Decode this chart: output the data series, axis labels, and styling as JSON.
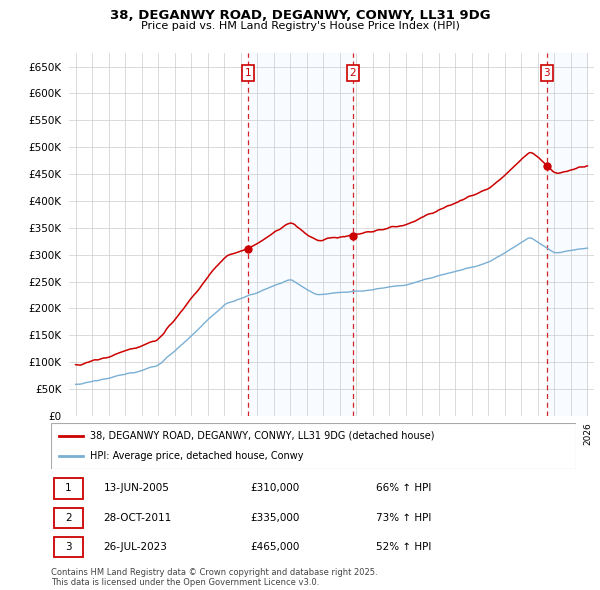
{
  "title1": "38, DEGANWY ROAD, DEGANWY, CONWY, LL31 9DG",
  "title2": "Price paid vs. HM Land Registry's House Price Index (HPI)",
  "red_label": "38, DEGANWY ROAD, DEGANWY, CONWY, LL31 9DG (detached house)",
  "blue_label": "HPI: Average price, detached house, Conwy",
  "transactions": [
    {
      "num": 1,
      "date": "13-JUN-2005",
      "price": 310000,
      "pct": "66%",
      "dir": "↑"
    },
    {
      "num": 2,
      "date": "28-OCT-2011",
      "price": 335000,
      "pct": "73%",
      "dir": "↑"
    },
    {
      "num": 3,
      "date": "26-JUL-2023",
      "price": 465000,
      "pct": "52%",
      "dir": "↑"
    }
  ],
  "trans_years": [
    2005.45,
    2011.79,
    2023.54
  ],
  "footer": "Contains HM Land Registry data © Crown copyright and database right 2025.\nThis data is licensed under the Open Government Licence v3.0.",
  "ylim": [
    0,
    675000
  ],
  "yticks": [
    0,
    50000,
    100000,
    150000,
    200000,
    250000,
    300000,
    350000,
    400000,
    450000,
    500000,
    550000,
    600000,
    650000
  ],
  "red_color": "#cc0000",
  "blue_color": "#7aafd4",
  "shade_color": "#ddeeff",
  "vline_color": "#cc0000",
  "bg_color": "#ffffff",
  "plot_bg": "#ffffff",
  "grid_color": "#cccccc"
}
